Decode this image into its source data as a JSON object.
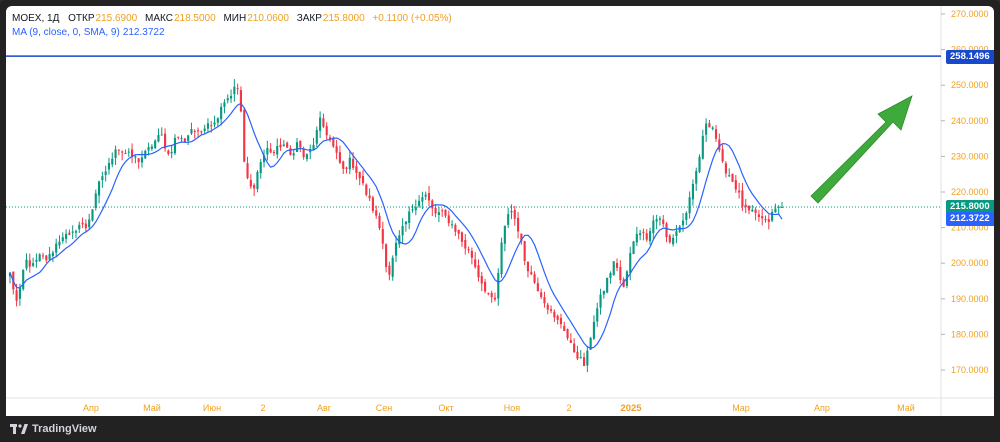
{
  "legend": {
    "symbol": "MOEX, 1Д",
    "open_label": "ОТКР",
    "open": "215.6900",
    "high_label": "МАКС",
    "high": "218.5000",
    "low_label": "МИН",
    "low": "210.0600",
    "close_label": "ЗАКР",
    "close": "215.8000",
    "change": "+0.1100 (+0.05%)",
    "ma_name": "MA (9, close, 0, SMA, 9)",
    "ma_value": "212.3722"
  },
  "price_axis": {
    "ticks": [
      "270.0000",
      "260.0000",
      "250.0000",
      "240.0000",
      "230.0000",
      "220.0000",
      "210.0000",
      "200.0000",
      "190.0000",
      "180.0000",
      "170.0000"
    ]
  },
  "price_labels": {
    "hline": "258.1496",
    "last": "215.8000",
    "ma": "212.3722"
  },
  "time_axis": {
    "labels": [
      "Апр",
      "Май",
      "Июн",
      "2",
      "Авг",
      "Сен",
      "Окт",
      "Ноя",
      "2",
      "2025",
      "Мар",
      "Апр",
      "Май"
    ]
  },
  "footer": {
    "brand": "TradingView"
  },
  "colors": {
    "up": "#089981",
    "down": "#f23645",
    "ma": "#2962ff",
    "hline": "#1848cc",
    "arrow": "#3faa3c",
    "axis_text": "#f0a020"
  },
  "chart_data": {
    "type": "candlestick",
    "title": "",
    "price_range": [
      166,
      272
    ],
    "horizontal_line": 258.1496,
    "last_close": 215.8,
    "ma_last": 212.3722,
    "path": [
      [
        0,
        197
      ],
      [
        1,
        188
      ],
      [
        2,
        201
      ],
      [
        3,
        199
      ],
      [
        4,
        202
      ],
      [
        5,
        201
      ],
      [
        6,
        205
      ],
      [
        7,
        208
      ],
      [
        8,
        207
      ],
      [
        9,
        211
      ],
      [
        10,
        210
      ],
      [
        11,
        216
      ],
      [
        12,
        224
      ],
      [
        13,
        227
      ],
      [
        14,
        233
      ],
      [
        15,
        231
      ],
      [
        16,
        230
      ],
      [
        17,
        229
      ],
      [
        18,
        231
      ],
      [
        19,
        234
      ],
      [
        20,
        236
      ],
      [
        21,
        230
      ],
      [
        22,
        236
      ],
      [
        23,
        234
      ],
      [
        24,
        238
      ],
      [
        25,
        236
      ],
      [
        26,
        240
      ],
      [
        27,
        239
      ],
      [
        28,
        245
      ],
      [
        29,
        247
      ],
      [
        30,
        250
      ],
      [
        30.5,
        243
      ],
      [
        31,
        226
      ],
      [
        32,
        220
      ],
      [
        33,
        228
      ],
      [
        34,
        232
      ],
      [
        35,
        231
      ],
      [
        36,
        234
      ],
      [
        37,
        230
      ],
      [
        38,
        234
      ],
      [
        39,
        229
      ],
      [
        40,
        233
      ],
      [
        41,
        240
      ],
      [
        42,
        236
      ],
      [
        43,
        231
      ],
      [
        44,
        226
      ],
      [
        45,
        229
      ],
      [
        46,
        225
      ],
      [
        47,
        220
      ],
      [
        48,
        215
      ],
      [
        49,
        209
      ],
      [
        50,
        196
      ],
      [
        51,
        205
      ],
      [
        52,
        210
      ],
      [
        53,
        215
      ],
      [
        54,
        218
      ],
      [
        55,
        219
      ],
      [
        56,
        214
      ],
      [
        57,
        214
      ],
      [
        58,
        212
      ],
      [
        59,
        209
      ],
      [
        60,
        205
      ],
      [
        61,
        202
      ],
      [
        62,
        196
      ],
      [
        63,
        192
      ],
      [
        64,
        188
      ],
      [
        65,
        206
      ],
      [
        66,
        216
      ],
      [
        67,
        211
      ],
      [
        68,
        201
      ],
      [
        69,
        196
      ],
      [
        70,
        192
      ],
      [
        71,
        188
      ],
      [
        72,
        184
      ],
      [
        73,
        183
      ],
      [
        74,
        177
      ],
      [
        75,
        174
      ],
      [
        76,
        171
      ],
      [
        77,
        183
      ],
      [
        78,
        190
      ],
      [
        79,
        196
      ],
      [
        80,
        201
      ],
      [
        81,
        192
      ],
      [
        82,
        203
      ],
      [
        83,
        210
      ],
      [
        84,
        207
      ],
      [
        85,
        212
      ],
      [
        86,
        213
      ],
      [
        87,
        205
      ],
      [
        88,
        209
      ],
      [
        89,
        212
      ],
      [
        90,
        219
      ],
      [
        91,
        229
      ],
      [
        92,
        240
      ],
      [
        93,
        238
      ],
      [
        94,
        228
      ],
      [
        95,
        225
      ],
      [
        96,
        221
      ],
      [
        97,
        215
      ],
      [
        98,
        214
      ],
      [
        99,
        213
      ],
      [
        100,
        211
      ],
      [
        101,
        215
      ],
      [
        102,
        216
      ]
    ]
  }
}
